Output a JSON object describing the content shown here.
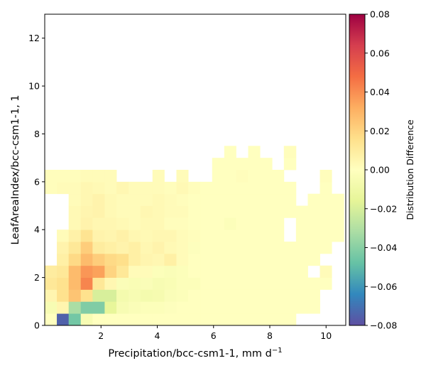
{
  "chart_data": {
    "type": "heatmap",
    "xlabel": "Precipitation/bcc-csm1-1,  mm d",
    "xlabel_sup": "−1",
    "ylabel": "LeafAreaIndex/bcc-csm1-1,  1",
    "colorbar_label": "Distribution Difference",
    "xlim": [
      0.0,
      10.7
    ],
    "ylim": [
      0,
      13
    ],
    "xticks": [
      2,
      4,
      6,
      8,
      10
    ],
    "yticks": [
      0,
      2,
      4,
      6,
      8,
      10,
      12
    ],
    "colorbar": {
      "vmin": -0.08,
      "vmax": 0.08,
      "ticks": [
        -0.08,
        -0.06,
        -0.04,
        -0.02,
        0.0,
        0.02,
        0.04,
        0.06,
        0.08
      ],
      "tick_labels": [
        "−0.08",
        "−0.06",
        "−0.04",
        "−0.02",
        "0.00",
        "0.02",
        "0.04",
        "0.06",
        "0.08"
      ],
      "colormap": "Spectral_r"
    },
    "x_bin_edges": [
      0.0,
      0.43,
      0.85,
      1.28,
      1.7,
      2.13,
      2.55,
      2.98,
      3.4,
      3.83,
      4.25,
      4.68,
      5.1,
      5.53,
      5.95,
      6.38,
      6.8,
      7.23,
      7.65,
      8.08,
      8.5,
      8.93,
      9.35,
      9.78,
      10.2,
      10.63
    ],
    "y_bin_edges": [
      0.0,
      0.5,
      1.0,
      1.5,
      2.0,
      2.5,
      3.0,
      3.5,
      4.0,
      4.5,
      5.0,
      5.5,
      6.0,
      6.5,
      7.0,
      7.5
    ],
    "z_rows_bottom_to_top": [
      [
        0.0,
        -0.075,
        -0.045,
        -0.005,
        0.0,
        0.0,
        0.0,
        0.0,
        0.0,
        0.0,
        0.0,
        0.0,
        0.0,
        0.0,
        0.0,
        0.0,
        0.0,
        0.0,
        0.0,
        0.0,
        0.0,
        null,
        null,
        null,
        null
      ],
      [
        -0.005,
        0.005,
        -0.032,
        -0.042,
        -0.042,
        -0.015,
        -0.005,
        -0.003,
        -0.002,
        -0.002,
        -0.001,
        0.0,
        0.0,
        0.0,
        0.0,
        0.0,
        0.0,
        0.0,
        0.0,
        0.0,
        0.0,
        0.0,
        0.0,
        null,
        null
      ],
      [
        0.005,
        0.015,
        0.025,
        0.015,
        -0.02,
        -0.02,
        -0.007,
        -0.005,
        -0.007,
        -0.006,
        -0.003,
        -0.002,
        0.0,
        0.0,
        0.0,
        0.0,
        0.0,
        0.0,
        0.0,
        0.0,
        0.0,
        0.0,
        0.0,
        null,
        null
      ],
      [
        0.012,
        0.015,
        0.028,
        0.042,
        0.012,
        0.004,
        -0.003,
        -0.004,
        -0.003,
        -0.005,
        -0.004,
        -0.002,
        -0.002,
        0.0,
        0.0,
        0.0,
        0.0,
        0.0,
        0.0,
        0.0,
        0.0,
        0.0,
        0.0,
        0.0,
        null
      ],
      [
        0.01,
        0.012,
        0.028,
        0.038,
        0.035,
        0.02,
        0.012,
        0.002,
        0.002,
        -0.002,
        -0.003,
        -0.002,
        0.0,
        0.0,
        0.0,
        0.0,
        0.0,
        0.0,
        0.0,
        0.0,
        0.0,
        0.0,
        null,
        0.002,
        null
      ],
      [
        null,
        0.008,
        0.018,
        0.028,
        0.022,
        0.018,
        0.016,
        0.008,
        0.005,
        0.004,
        0.008,
        0.002,
        0.0,
        0.0,
        0.0,
        0.0,
        0.0,
        0.0,
        0.0,
        0.0,
        0.0,
        0.0,
        0.0,
        null,
        null
      ],
      [
        null,
        0.006,
        0.012,
        0.022,
        0.01,
        0.008,
        0.006,
        0.008,
        0.004,
        0.006,
        0.003,
        0.002,
        -0.001,
        0.0,
        0.0,
        0.0,
        0.0,
        0.0,
        0.0,
        0.0,
        0.0,
        0.0,
        0.0,
        0.0,
        null
      ],
      [
        null,
        0.002,
        0.007,
        0.014,
        0.006,
        0.005,
        0.007,
        0.004,
        0.003,
        0.004,
        0.004,
        0.002,
        0.001,
        0.0,
        0.0,
        0.0,
        0.0,
        0.0,
        0.0,
        0.0,
        null,
        0.0,
        0.0,
        0.0,
        0.0
      ],
      [
        null,
        null,
        0.003,
        0.006,
        0.004,
        0.004,
        0.003,
        0.002,
        0.003,
        0.003,
        0.001,
        0.001,
        0.0,
        0.0,
        0.0,
        -0.002,
        0.0,
        0.0,
        0.0,
        0.0,
        null,
        0.0,
        0.0,
        0.0,
        0.0
      ],
      [
        null,
        null,
        0.003,
        0.005,
        0.006,
        0.003,
        0.002,
        0.002,
        0.004,
        0.003,
        0.002,
        0.002,
        0.0,
        0.0,
        0.0,
        0.0,
        0.0,
        0.0,
        0.0,
        0.0,
        0.0,
        0.0,
        0.0,
        0.0,
        0.0
      ],
      [
        null,
        null,
        0.002,
        0.004,
        0.006,
        0.003,
        0.002,
        0.002,
        0.002,
        0.003,
        0.002,
        0.001,
        0.0,
        0.0,
        0.0,
        0.0,
        0.0,
        0.0,
        0.0,
        0.0,
        0.0,
        null,
        0.0,
        0.0,
        0.0
      ],
      [
        0.001,
        0.002,
        0.002,
        0.004,
        0.003,
        0.002,
        0.004,
        0.002,
        0.002,
        0.002,
        0.001,
        0.003,
        0.001,
        0.0,
        0.0,
        0.0,
        0.0,
        0.0,
        0.0,
        0.0,
        0.0,
        null,
        null,
        0.0,
        null
      ],
      [
        0.001,
        0.001,
        0.001,
        0.002,
        0.002,
        0.002,
        null,
        null,
        null,
        0.002,
        null,
        0.002,
        null,
        null,
        0.0,
        0.0,
        0.001,
        0.0,
        0.0,
        0.0,
        null,
        null,
        null,
        0.001,
        null
      ],
      [
        null,
        null,
        null,
        null,
        null,
        null,
        null,
        null,
        null,
        null,
        null,
        null,
        null,
        null,
        0.0,
        0.0,
        0.0,
        0.0,
        0.0,
        null,
        0.0,
        null,
        null,
        null,
        null
      ],
      [
        null,
        null,
        null,
        null,
        null,
        null,
        null,
        null,
        null,
        null,
        null,
        null,
        null,
        null,
        null,
        0.0,
        null,
        0.0,
        null,
        null,
        0.001,
        null,
        null,
        null,
        null
      ]
    ]
  }
}
